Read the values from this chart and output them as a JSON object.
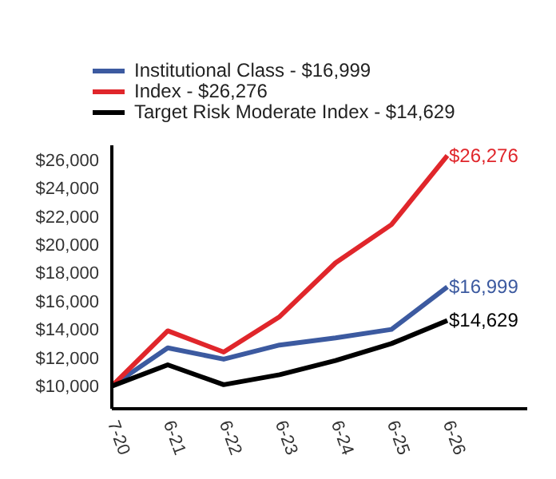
{
  "chart_data": {
    "type": "line",
    "categories": [
      "7-20",
      "6-21",
      "6-22",
      "6-23",
      "6-24",
      "6-25",
      "6-26"
    ],
    "series": [
      {
        "name": "Institutional Class - $16,999",
        "color": "#3c5aa0",
        "values": [
          10000,
          12700,
          11900,
          12900,
          13400,
          14000,
          16999
        ],
        "value_labels": [
          null,
          null,
          null,
          null,
          null,
          null,
          "$16,999"
        ]
      },
      {
        "name": "Index - $26,276",
        "color": "#e0262b",
        "values": [
          10000,
          13900,
          12400,
          14900,
          18700,
          21400,
          26276
        ],
        "value_labels": [
          null,
          null,
          null,
          null,
          null,
          null,
          "$26,276"
        ]
      },
      {
        "name": "Target Risk Moderate Index - $14,629",
        "color": "#000000",
        "values": [
          10000,
          11500,
          10100,
          10800,
          11800,
          13000,
          14629
        ],
        "value_labels": [
          null,
          null,
          null,
          null,
          null,
          null,
          "$14,629"
        ]
      }
    ],
    "ylim": [
      8400,
      27000
    ],
    "yticks": [
      {
        "value": 10000,
        "label": "$10,000"
      },
      {
        "value": 12000,
        "label": "$12,000"
      },
      {
        "value": 14000,
        "label": "$14,000"
      },
      {
        "value": 16000,
        "label": "$16,000"
      },
      {
        "value": 18000,
        "label": "$18,000"
      },
      {
        "value": 20000,
        "label": "$20,000"
      },
      {
        "value": 22000,
        "label": "$22,000"
      },
      {
        "value": 24000,
        "label": "$24,000"
      },
      {
        "value": 26000,
        "label": "$26,000"
      }
    ],
    "grid": false,
    "legend": "top left",
    "marker": "none",
    "line_style": "solid"
  }
}
